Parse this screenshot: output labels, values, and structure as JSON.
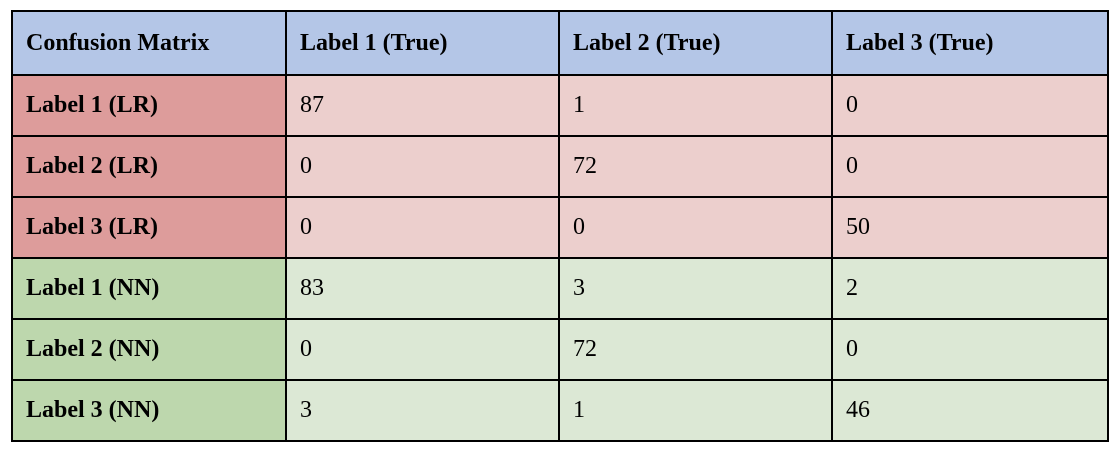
{
  "colors": {
    "header": "#b4c6e7",
    "lr_label": "#dd9c9b",
    "lr_cell": "#eccfcd",
    "nn_label": "#bdd7ad",
    "nn_cell": "#dce8d5"
  },
  "table": {
    "corner": "Confusion Matrix",
    "columns": [
      "Label 1 (True)",
      "Label 2 (True)",
      "Label 3 (True)"
    ],
    "rows": [
      {
        "label": "Label 1 (LR)",
        "group": "lr",
        "cells": [
          "87",
          "1",
          "0"
        ]
      },
      {
        "label": "Label 2 (LR)",
        "group": "lr",
        "cells": [
          "0",
          "72",
          "0"
        ]
      },
      {
        "label": "Label 3 (LR)",
        "group": "lr",
        "cells": [
          "0",
          "0",
          "50"
        ]
      },
      {
        "label": "Label 1 (NN)",
        "group": "nn",
        "cells": [
          "83",
          "3",
          "2"
        ]
      },
      {
        "label": "Label 2 (NN)",
        "group": "nn",
        "cells": [
          "0",
          "72",
          "0"
        ]
      },
      {
        "label": "Label 3 (NN)",
        "group": "nn",
        "cells": [
          "3",
          "1",
          "46"
        ]
      }
    ]
  }
}
